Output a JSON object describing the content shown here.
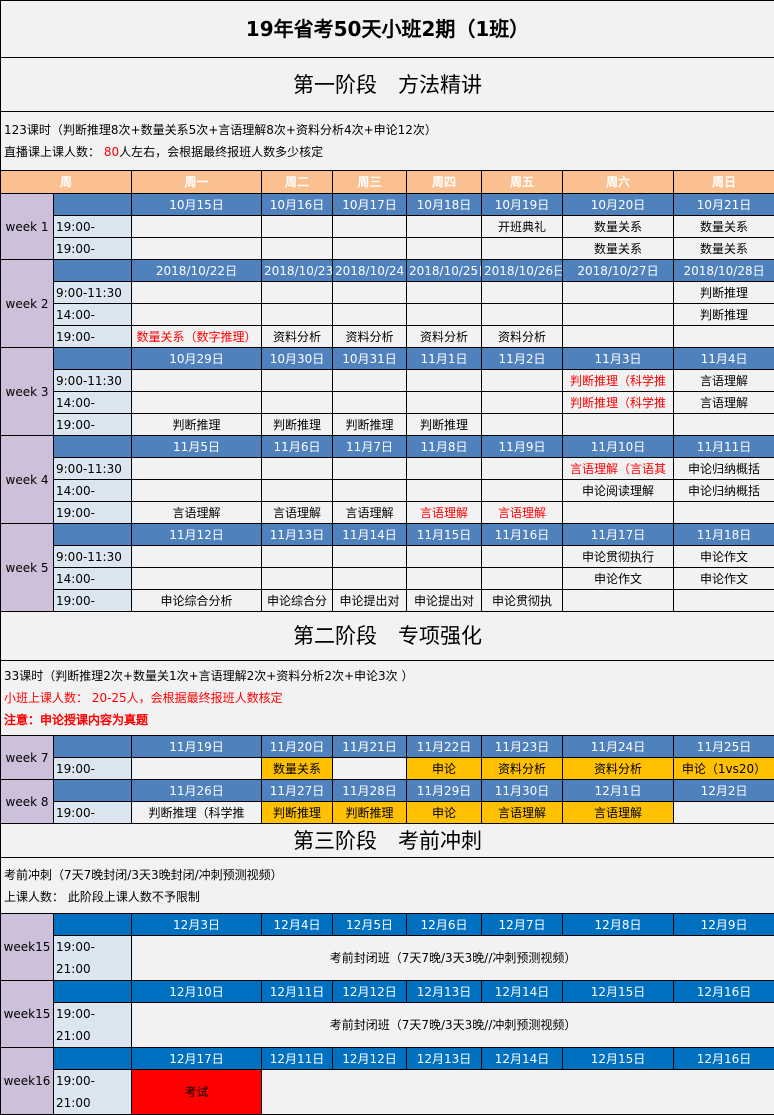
{
  "title": "19年省考50天小班2期（1班）",
  "stage1": {
    "heading": "第一阶段　方法精讲",
    "lines": [
      [
        {
          "t": "123课时（判断推理8次+数量关系5次+言语理解8次+资料分析4次+申论12次）"
        }
      ],
      [
        {
          "t": "直播课上课人数：  "
        },
        {
          "t": "80",
          "c": "red"
        },
        {
          "t": "人左右，会根据最终报班人数多少核定"
        }
      ]
    ],
    "weekday_header": [
      "周",
      "周一",
      "周二",
      "周三",
      "周四",
      "周五",
      "周六",
      "周日"
    ],
    "weeks": [
      {
        "label": "week 1",
        "dates": [
          "10月15日",
          "10月16日",
          "10月17日",
          "10月18日",
          "10月19日",
          "10月20日",
          "10月21日"
        ],
        "slots": [
          {
            "time": "19:00-",
            "cells": [
              {
                "t": ""
              },
              {
                "t": ""
              },
              {
                "t": ""
              },
              {
                "t": ""
              },
              {
                "t": "开班典礼"
              },
              {
                "t": "数量关系"
              },
              {
                "t": "数量关系"
              }
            ]
          },
          {
            "time": "19:00-",
            "cells": [
              {
                "t": ""
              },
              {
                "t": ""
              },
              {
                "t": ""
              },
              {
                "t": ""
              },
              {
                "t": ""
              },
              {
                "t": "数量关系"
              },
              {
                "t": "数量关系"
              }
            ]
          }
        ]
      },
      {
        "label": "week 2",
        "dates": [
          "2018/10/22日",
          "2018/10/23日",
          "2018/10/24日",
          "2018/10/25日",
          "2018/10/26日",
          "2018/10/27日",
          "2018/10/28日"
        ],
        "slots": [
          {
            "time": "9:00-11:30",
            "cells": [
              {
                "t": ""
              },
              {
                "t": ""
              },
              {
                "t": ""
              },
              {
                "t": ""
              },
              {
                "t": ""
              },
              {
                "t": ""
              },
              {
                "t": "判断推理"
              }
            ]
          },
          {
            "time": "14:00-",
            "cells": [
              {
                "t": ""
              },
              {
                "t": ""
              },
              {
                "t": ""
              },
              {
                "t": ""
              },
              {
                "t": ""
              },
              {
                "t": ""
              },
              {
                "t": "判断推理"
              }
            ]
          },
          {
            "time": "19:00-",
            "cells": [
              {
                "t": "数量关系（数字推理）",
                "s": "red"
              },
              {
                "t": "资料分析"
              },
              {
                "t": "资料分析"
              },
              {
                "t": "资料分析"
              },
              {
                "t": "资料分析"
              },
              {
                "t": ""
              },
              {
                "t": ""
              }
            ]
          }
        ]
      },
      {
        "label": "week 3",
        "dates": [
          "10月29日",
          "10月30日",
          "10月31日",
          "11月1日",
          "11月2日",
          "11月3日",
          "11月4日"
        ],
        "slots": [
          {
            "time": "9:00-11:30",
            "cells": [
              {
                "t": ""
              },
              {
                "t": ""
              },
              {
                "t": ""
              },
              {
                "t": ""
              },
              {
                "t": ""
              },
              {
                "t": "判断推理（科学推",
                "s": "red"
              },
              {
                "t": "言语理解"
              }
            ]
          },
          {
            "time": "14:00-",
            "cells": [
              {
                "t": ""
              },
              {
                "t": ""
              },
              {
                "t": ""
              },
              {
                "t": ""
              },
              {
                "t": ""
              },
              {
                "t": "判断推理（科学推",
                "s": "red"
              },
              {
                "t": "言语理解"
              }
            ]
          },
          {
            "time": "19:00-",
            "cells": [
              {
                "t": "判断推理"
              },
              {
                "t": "判断推理"
              },
              {
                "t": "判断推理"
              },
              {
                "t": "判断推理"
              },
              {
                "t": ""
              },
              {
                "t": ""
              },
              {
                "t": ""
              }
            ]
          }
        ]
      },
      {
        "label": "week 4",
        "dates": [
          "11月5日",
          "11月6日",
          "11月7日",
          "11月8日",
          "11月9日",
          "11月10日",
          "11月11日"
        ],
        "slots": [
          {
            "time": "9:00-11:30",
            "cells": [
              {
                "t": ""
              },
              {
                "t": ""
              },
              {
                "t": ""
              },
              {
                "t": ""
              },
              {
                "t": ""
              },
              {
                "t": "言语理解（言语其",
                "s": "red"
              },
              {
                "t": "申论归纳概括"
              }
            ]
          },
          {
            "time": "14:00-",
            "cells": [
              {
                "t": ""
              },
              {
                "t": ""
              },
              {
                "t": ""
              },
              {
                "t": ""
              },
              {
                "t": ""
              },
              {
                "t": "申论阅读理解"
              },
              {
                "t": "申论归纳概括"
              }
            ]
          },
          {
            "time": "19:00-",
            "cells": [
              {
                "t": "言语理解"
              },
              {
                "t": "言语理解"
              },
              {
                "t": "言语理解"
              },
              {
                "t": "言语理解",
                "s": "red"
              },
              {
                "t": "言语理解",
                "s": "red"
              },
              {
                "t": ""
              },
              {
                "t": ""
              }
            ]
          }
        ]
      },
      {
        "label": "week 5",
        "dates": [
          "11月12日",
          "11月13日",
          "11月14日",
          "11月15日",
          "11月16日",
          "11月17日",
          "11月18日"
        ],
        "slots": [
          {
            "time": "9:00-11:30",
            "cells": [
              {
                "t": ""
              },
              {
                "t": ""
              },
              {
                "t": ""
              },
              {
                "t": ""
              },
              {
                "t": ""
              },
              {
                "t": "申论贯彻执行"
              },
              {
                "t": "申论作文"
              }
            ]
          },
          {
            "time": "14:00-",
            "cells": [
              {
                "t": ""
              },
              {
                "t": ""
              },
              {
                "t": ""
              },
              {
                "t": ""
              },
              {
                "t": ""
              },
              {
                "t": "申论作文"
              },
              {
                "t": "申论作文"
              }
            ]
          },
          {
            "time": "19:00-",
            "cells": [
              {
                "t": "申论综合分析"
              },
              {
                "t": "申论综合分"
              },
              {
                "t": "申论提出对"
              },
              {
                "t": "申论提出对"
              },
              {
                "t": "申论贯彻执"
              },
              {
                "t": ""
              },
              {
                "t": ""
              }
            ]
          }
        ]
      }
    ]
  },
  "stage2": {
    "heading": "第二阶段　专项强化",
    "lines": [
      [
        {
          "t": "33课时（判断推理2次+数量关1次+言语理解2次+资料分析2次+申论3次 ）"
        }
      ],
      [
        {
          "t": "小班上课人数：  20-25人，会根据最终报班人数核定",
          "c": "red"
        }
      ],
      [
        {
          "t": "注意：申论授课内容为真题",
          "c": "red bold"
        }
      ]
    ],
    "weeks": [
      {
        "label": "week 7",
        "dates": [
          "11月19日",
          "11月20日",
          "11月21日",
          "11月22日",
          "11月23日",
          "11月24日",
          "11月25日"
        ],
        "slots": [
          {
            "time": "19:00-",
            "cells": [
              {
                "t": ""
              },
              {
                "t": "数量关系",
                "s": "yellow"
              },
              {
                "t": ""
              },
              {
                "t": "申论",
                "s": "yellow"
              },
              {
                "t": "资料分析",
                "s": "yellow"
              },
              {
                "t": "资料分析",
                "s": "yellow"
              },
              {
                "t": "申论（1vs20）",
                "s": "yellow"
              }
            ]
          }
        ]
      },
      {
        "label": "week 8",
        "dates": [
          "11月26日",
          "11月27日",
          "11月28日",
          "11月29日",
          "11月30日",
          "12月1日",
          "12月2日"
        ],
        "slots": [
          {
            "time": "19:00-",
            "cells": [
              {
                "t": "判断推理（科学推"
              },
              {
                "t": "判断推理",
                "s": "yellow"
              },
              {
                "t": "判断推理",
                "s": "yellow"
              },
              {
                "t": "申论",
                "s": "yellow"
              },
              {
                "t": "言语理解",
                "s": "yellow"
              },
              {
                "t": "言语理解",
                "s": "yellow"
              },
              {
                "t": ""
              }
            ]
          }
        ]
      }
    ]
  },
  "stage3": {
    "heading": "第三阶段　考前冲刺",
    "lines": [
      [
        {
          "t": "考前冲刺（7天7晚封闭/3天3晚封闭/冲刺预测视频）"
        }
      ],
      [
        {
          "t": "上课人数：  此阶段上课人数不予限制"
        }
      ]
    ],
    "weeks": [
      {
        "label": "week15",
        "time": "19:00-\n21:00",
        "dates": [
          "12月3日",
          "12月4日",
          "12月5日",
          "12月6日",
          "12月7日",
          "12月8日",
          "12月9日"
        ],
        "content": "考前封闭班（7天7晚/3天3晚//冲刺预测视频）"
      },
      {
        "label": "week15",
        "time": "19:00-\n21:00",
        "dates": [
          "12月10日",
          "12月11日",
          "12月12日",
          "12月13日",
          "12月14日",
          "12月15日",
          "12月16日"
        ],
        "content": "考前封闭班（7天7晚/3天3晚//冲刺预测视频）"
      },
      {
        "label": "week16",
        "time": "19:00-\n21:00",
        "dates": [
          "12月17日",
          "12月11日",
          "12月12日",
          "12月13日",
          "12月14日",
          "12月15日",
          "12月16日"
        ],
        "exam": "考试",
        "content": ""
      }
    ]
  },
  "colors": {
    "header": "#fac090",
    "date_row": "#4f81bd",
    "date_row_stage3": "#0070c0",
    "week_label": "#ccc0da",
    "time_col": "#dce6f1",
    "highlight": "#ffc000",
    "exam": "#ff0000",
    "red_text": "#ff0000"
  }
}
